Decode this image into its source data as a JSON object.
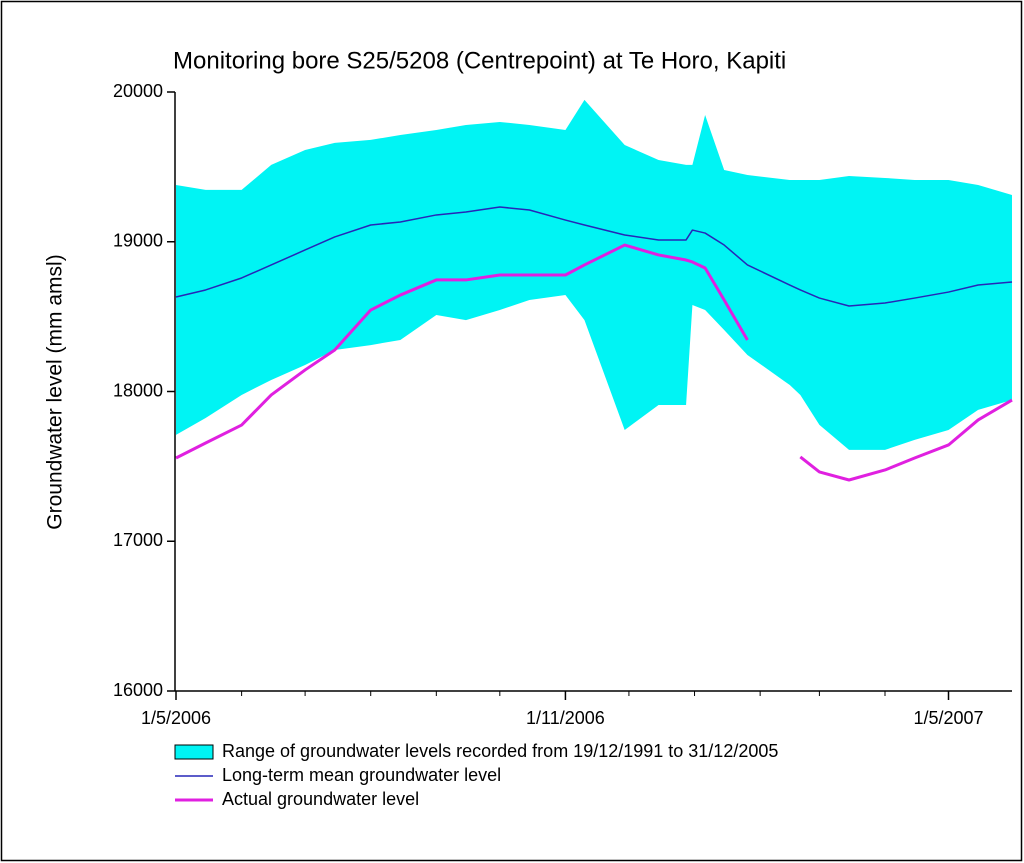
{
  "chart_data": {
    "type": "line",
    "title": "Monitoring bore S25/5208 (Centrepoint) at Te Horo, Kapiti",
    "y_label": "Groundwater level (mm amsl)",
    "x": [
      "1/5/2006",
      "15/5/2006",
      "1/6/2006",
      "15/6/2006",
      "1/7/2006",
      "15/7/2006",
      "1/8/2006",
      "15/8/2006",
      "1/9/2006",
      "15/9/2006",
      "1/10/2006",
      "15/10/2006",
      "1/11/2006",
      "10/11/2006",
      "29/11/2006",
      "15/12/2006",
      "28/12/2006",
      "31/12/2006",
      "6/1/2007",
      "15/1/2007",
      "26/1/2007",
      "15/2/2007",
      "20/2/2007",
      "1/3/2007",
      "15/3/2007",
      "1/4/2007",
      "15/4/2007",
      "1/5/2007",
      "15/5/2007",
      "31/5/2007"
    ],
    "series": [
      {
        "name": "Range of groundwater levels recorded from 19/12/1991 to 31/12/2005",
        "color": "#00f4f4",
        "low": [
          17710,
          17823,
          17977,
          18077,
          18177,
          18277,
          18310,
          18344,
          18511,
          18477,
          18544,
          18611,
          18644,
          18477,
          17743,
          17910,
          17910,
          18578,
          18544,
          18411,
          18244,
          18043,
          17977,
          17777,
          17610,
          17610,
          17677,
          17743,
          17877,
          17943
        ],
        "high": [
          19379,
          19346,
          19346,
          19513,
          19613,
          19660,
          19680,
          19713,
          19746,
          19780,
          19800,
          19780,
          19746,
          19947,
          19646,
          19546,
          19513,
          19513,
          19846,
          19479,
          19446,
          19412,
          19412,
          19412,
          19439,
          19426,
          19412,
          19412,
          19379,
          19312
        ]
      },
      {
        "name": "Long-term mean groundwater level",
        "color": "#2626b8",
        "values": [
          18631,
          18678,
          18758,
          18845,
          18945,
          19032,
          19112,
          19132,
          19179,
          19199,
          19232,
          19212,
          19145,
          19112,
          19045,
          19012,
          19012,
          19078,
          19058,
          18978,
          18845,
          18711,
          18678,
          18624,
          18571,
          18591,
          18624,
          18664,
          18711,
          18731
        ]
      },
      {
        "name": "Actual groundwater level",
        "color": "#e020e0",
        "values": [
          17556,
          17656,
          17776,
          17977,
          18144,
          18277,
          18544,
          18644,
          18745,
          18745,
          18778,
          18778,
          18778,
          18845,
          18978,
          18912,
          18878,
          18865,
          18825,
          18611,
          18344,
          null,
          17563,
          17463,
          17409,
          17476,
          17556,
          17643,
          17810,
          17943
        ]
      }
    ],
    "xlim": [
      "1/5/2006",
      "31/5/2007"
    ],
    "xticks": [
      "1/5/2006",
      "1/11/2006",
      "1/5/2007"
    ],
    "xminor_ticks": [
      "1/6/2006",
      "1/7/2006",
      "1/8/2006",
      "1/9/2006",
      "1/10/2006",
      "1/12/2006",
      "1/1/2007",
      "1/2/2007",
      "1/3/2007",
      "1/4/2007"
    ],
    "ylim": [
      16000,
      20000
    ],
    "yticks": [
      16000,
      17000,
      18000,
      19000,
      20000
    ]
  }
}
